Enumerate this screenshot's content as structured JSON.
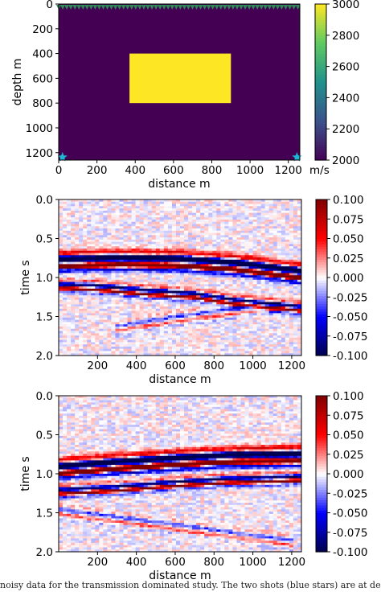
{
  "caption": "noisy data for the transmission dominated study. The two shots (blue stars) are at depth near the edges of the m",
  "chart_data": [
    {
      "type": "heatmap",
      "title": "",
      "xlabel": "distance m",
      "ylabel": "depth m",
      "xlim": [
        0,
        1260
      ],
      "ylim": [
        1260,
        0
      ],
      "xticks": [
        "0",
        "200",
        "400",
        "600",
        "800",
        "1000",
        "1200"
      ],
      "yticks": [
        "0",
        "200",
        "400",
        "600",
        "800",
        "1000",
        "1200"
      ],
      "colorbar": {
        "label": "m/s",
        "min": 2000,
        "max": 3000,
        "ticks": [
          "2000",
          "2200",
          "2400",
          "2600",
          "2800",
          "3000"
        ]
      },
      "background_velocity": 2000,
      "anomaly": {
        "velocity": 3000,
        "x_range": [
          370,
          900
        ],
        "depth_range": [
          400,
          800
        ]
      },
      "receivers": {
        "depth": 0,
        "x_start": 0,
        "x_end": 1250,
        "count": 60,
        "color": "#2e8b57"
      },
      "shots": [
        {
          "x": 20,
          "depth": 1250
        },
        {
          "x": 1245,
          "depth": 1250
        }
      ],
      "shot_color": "#1fb5d4",
      "colors": {
        "low": "#440154",
        "high": "#fde725"
      }
    },
    {
      "type": "heatmap",
      "title": "",
      "xlabel": "distance m",
      "ylabel": "time s",
      "xlim": [
        0,
        1250
      ],
      "ylim": [
        2.0,
        0.0
      ],
      "xticks": [
        "200",
        "400",
        "600",
        "800",
        "1000",
        "1200"
      ],
      "yticks": [
        "0.0",
        "0.5",
        "1.0",
        "1.5",
        "2.0"
      ],
      "colorbar": {
        "min": -0.1,
        "max": 0.1,
        "ticks": [
          "-0.100",
          "-0.075",
          "-0.050",
          "-0.025",
          "0.000",
          "0.025",
          "0.050",
          "0.075",
          "0.100"
        ]
      },
      "colormap": "seismic",
      "first_arrival": {
        "x": [
          0,
          300,
          600,
          900,
          1250
        ],
        "t": [
          0.82,
          0.8,
          0.81,
          0.86,
          0.97
        ]
      },
      "diffraction": {
        "x": [
          0,
          200,
          450,
          700,
          900,
          1250
        ],
        "t": [
          1.08,
          1.1,
          1.16,
          1.2,
          1.28,
          1.37
        ]
      },
      "late_event": {
        "x": [
          300,
          600,
          900,
          1150
        ],
        "t": [
          1.62,
          1.5,
          1.4,
          1.32
        ]
      }
    },
    {
      "type": "heatmap",
      "title": "",
      "xlabel": "distance m",
      "ylabel": "time s",
      "xlim": [
        0,
        1250
      ],
      "ylim": [
        2.0,
        0.0
      ],
      "xticks": [
        "200",
        "400",
        "600",
        "800",
        "1000",
        "1200"
      ],
      "yticks": [
        "0.0",
        "0.5",
        "1.0",
        "1.5",
        "2.0"
      ],
      "colorbar": {
        "min": -0.1,
        "max": 0.1,
        "ticks": [
          "-0.100",
          "-0.075",
          "-0.050",
          "-0.025",
          "0.000",
          "0.025",
          "0.050",
          "0.075",
          "0.100"
        ]
      },
      "colormap": "seismic",
      "first_arrival": {
        "x": [
          0,
          300,
          600,
          900,
          1250
        ],
        "t": [
          0.96,
          0.9,
          0.85,
          0.81,
          0.8
        ]
      },
      "diffraction": {
        "x": [
          0,
          300,
          600,
          850,
          1250
        ],
        "t": [
          1.2,
          1.16,
          1.1,
          1.06,
          1.03
        ]
      },
      "late_event": {
        "x": [
          0,
          300,
          600,
          900,
          1200
        ],
        "t": [
          1.45,
          1.55,
          1.65,
          1.75,
          1.85
        ]
      }
    }
  ]
}
